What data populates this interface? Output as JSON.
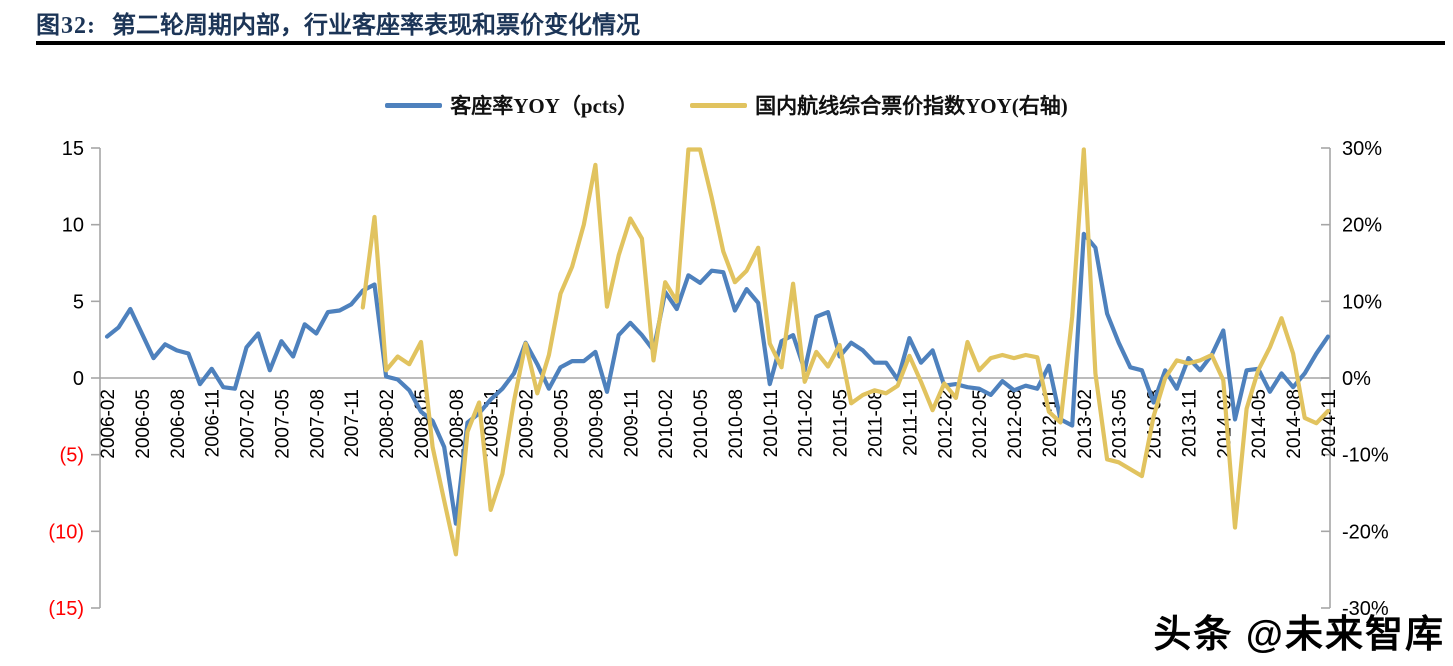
{
  "page": {
    "title_prefix": "图32:",
    "title_text": "第二轮周期内部，行业客座率表现和票价变化情况",
    "watermark": "头条 @未来智库"
  },
  "legend": {
    "items": [
      {
        "label": "客座率YOY（pcts）",
        "color": "#4E81BD"
      },
      {
        "label": "国内航线综合票价指数YOY(右轴)",
        "color": "#E1C35F"
      }
    ]
  },
  "chart_data": {
    "type": "line",
    "title": "图32: 第二轮周期内部，行业客座率表现和票价变化情况",
    "grid": "horizontal zero line only",
    "legend_position": "top",
    "x": [
      "2006-02",
      "2006-03",
      "2006-04",
      "2006-05",
      "2006-06",
      "2006-07",
      "2006-08",
      "2006-09",
      "2006-10",
      "2006-11",
      "2006-12",
      "2007-01",
      "2007-02",
      "2007-03",
      "2007-04",
      "2007-05",
      "2007-06",
      "2007-07",
      "2007-08",
      "2007-09",
      "2007-10",
      "2007-11",
      "2007-12",
      "2008-01",
      "2008-02",
      "2008-03",
      "2008-04",
      "2008-05",
      "2008-06",
      "2008-07",
      "2008-08",
      "2008-09",
      "2008-10",
      "2008-11",
      "2008-12",
      "2009-01",
      "2009-02",
      "2009-03",
      "2009-04",
      "2009-05",
      "2009-06",
      "2009-07",
      "2009-08",
      "2009-09",
      "2009-10",
      "2009-11",
      "2009-12",
      "2010-01",
      "2010-02",
      "2010-03",
      "2010-04",
      "2010-05",
      "2010-06",
      "2010-07",
      "2010-08",
      "2010-09",
      "2010-10",
      "2010-11",
      "2010-12",
      "2011-01",
      "2011-02",
      "2011-03",
      "2011-04",
      "2011-05",
      "2011-06",
      "2011-07",
      "2011-08",
      "2011-09",
      "2011-10",
      "2011-11",
      "2011-12",
      "2012-01",
      "2012-02",
      "2012-03",
      "2012-04",
      "2012-05",
      "2012-06",
      "2012-07",
      "2012-08",
      "2012-09",
      "2012-10",
      "2012-11",
      "2012-12",
      "2013-01",
      "2013-02",
      "2013-03",
      "2013-04",
      "2013-05",
      "2013-06",
      "2013-07",
      "2013-08",
      "2013-09",
      "2013-10",
      "2013-11",
      "2013-12",
      "2014-01",
      "2014-02",
      "2014-03",
      "2014-04",
      "2014-05",
      "2014-06",
      "2014-07",
      "2014-08",
      "2014-09",
      "2014-10",
      "2014-11"
    ],
    "x_tick_labels": [
      "2006-02",
      "2006-05",
      "2006-08",
      "2006-11",
      "2007-02",
      "2007-05",
      "2007-08",
      "2007-11",
      "2008-02",
      "2008-05",
      "2008-08",
      "2008-11",
      "2009-02",
      "2009-05",
      "2009-08",
      "2009-11",
      "2010-02",
      "2010-05",
      "2010-08",
      "2010-11",
      "2011-02",
      "2011-05",
      "2011-08",
      "2011-11",
      "2012-02",
      "2012-05",
      "2012-08",
      "2012-11",
      "2013-02",
      "2013-05",
      "2013-08",
      "2013-11",
      "2014-02",
      "2014-05",
      "2014-08",
      "2014-11"
    ],
    "series": [
      {
        "name": "客座率YOY（pcts）",
        "axis": "left",
        "color": "#4E81BD",
        "values": [
          2.7,
          3.3,
          4.5,
          2.9,
          1.3,
          2.2,
          1.8,
          1.6,
          -0.4,
          0.6,
          -0.6,
          -0.7,
          2.0,
          2.9,
          0.5,
          2.4,
          1.4,
          3.5,
          2.9,
          4.3,
          4.4,
          4.8,
          5.7,
          6.1,
          0.1,
          -0.1,
          -0.8,
          -2.2,
          -2.8,
          -4.5,
          -9.5,
          -2.9,
          -2.3,
          -1.4,
          -0.7,
          0.3,
          2.3,
          0.9,
          -0.7,
          0.7,
          1.1,
          1.1,
          1.7,
          -0.9,
          2.8,
          3.6,
          2.8,
          1.8,
          5.6,
          4.5,
          6.7,
          6.2,
          7.0,
          6.9,
          4.4,
          5.8,
          4.9,
          -0.4,
          2.4,
          2.8,
          0.5,
          4.0,
          4.3,
          1.4,
          2.3,
          1.8,
          1.0,
          1.0,
          -0.1,
          2.6,
          1.0,
          1.8,
          -0.5,
          -0.4,
          -0.6,
          -0.7,
          -1.1,
          -0.2,
          -0.8,
          -0.5,
          -0.7,
          0.8,
          -2.7,
          -3.1,
          9.4,
          8.5,
          4.2,
          2.3,
          0.7,
          0.5,
          -1.6,
          0.5,
          -0.7,
          1.3,
          0.5,
          1.5,
          3.1,
          -2.7,
          0.5,
          0.6,
          -0.9,
          0.3,
          -0.6,
          0.3,
          1.6,
          2.7
        ]
      },
      {
        "name": "国内航线综合票价指数YOY(右轴)",
        "axis": "right",
        "color": "#E1C35F",
        "values": [
          null,
          null,
          null,
          null,
          null,
          null,
          null,
          null,
          null,
          null,
          null,
          null,
          null,
          null,
          null,
          null,
          null,
          null,
          null,
          null,
          null,
          null,
          9.2,
          21.0,
          1.0,
          2.8,
          1.8,
          4.7,
          -9.0,
          -16.0,
          -23.0,
          -7.0,
          -3.2,
          -17.2,
          -12.5,
          -3.0,
          4.5,
          -2.0,
          3.0,
          11.0,
          14.5,
          20.0,
          27.8,
          9.3,
          16.0,
          20.8,
          18.2,
          2.3,
          12.5,
          10.0,
          29.8,
          29.8,
          23.5,
          16.5,
          12.5,
          14.0,
          17.0,
          4.5,
          1.4,
          12.3,
          -0.5,
          3.4,
          1.5,
          4.3,
          -3.3,
          -2.2,
          -1.6,
          -2.0,
          -1.0,
          2.9,
          -0.5,
          -4.2,
          -0.7,
          -2.6,
          4.7,
          1.0,
          2.6,
          3.0,
          2.6,
          3.0,
          2.7,
          -4.4,
          -5.8,
          8.0,
          29.8,
          0.6,
          -10.6,
          -11.0,
          -11.9,
          -12.8,
          -5.0,
          0.0,
          2.3,
          1.9,
          2.3,
          3.0,
          -0.3,
          -19.5,
          -4.0,
          1.0,
          4.0,
          7.8,
          3.2,
          -5.2,
          -5.9,
          -4.3
        ]
      }
    ],
    "left_axis": {
      "range": [
        -15,
        15
      ],
      "tick_values": [
        15,
        10,
        5,
        0,
        -5,
        -10,
        -15
      ],
      "tick_labels": [
        "15",
        "10",
        "5",
        "0",
        "(5)",
        "(10)",
        "(15)"
      ],
      "negative_label_color": "#FF0000"
    },
    "right_axis": {
      "range": [
        -30,
        30
      ],
      "tick_values": [
        30,
        20,
        10,
        0,
        -10,
        -20,
        -30
      ],
      "tick_labels": [
        "30%",
        "20%",
        "10%",
        "0%",
        "-10%",
        "-20%",
        "-30%"
      ]
    }
  }
}
